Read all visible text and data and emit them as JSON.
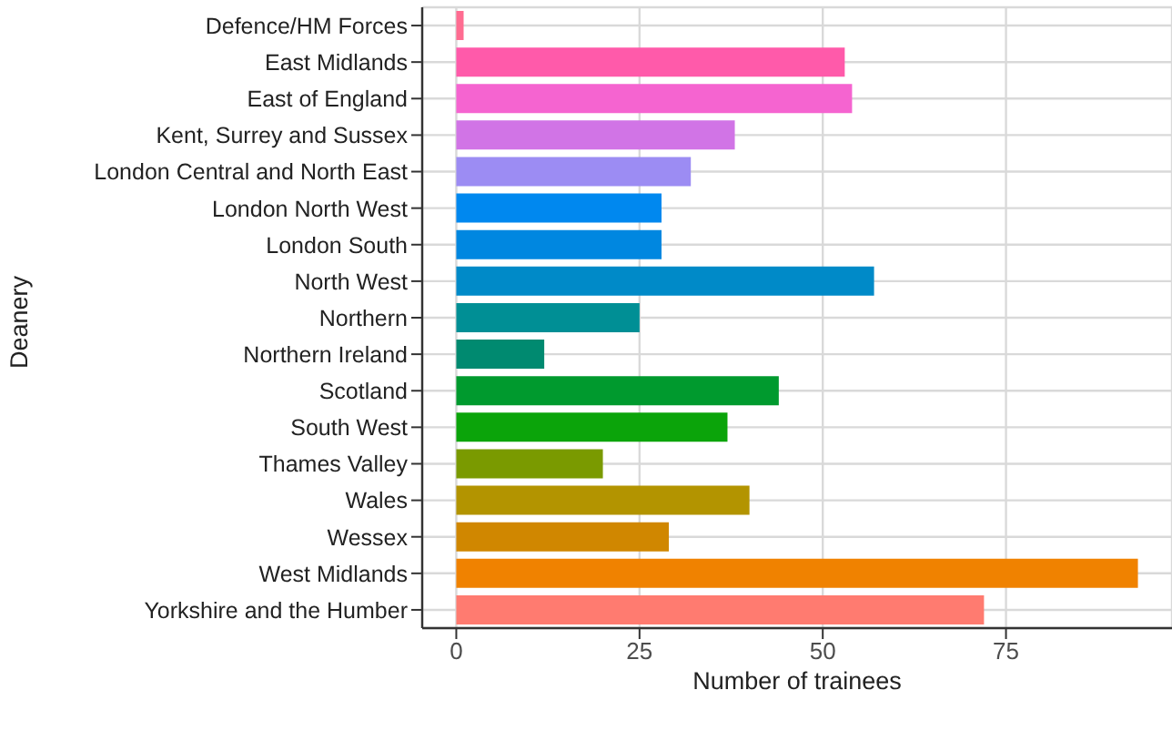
{
  "chart_data": {
    "type": "bar",
    "orientation": "horizontal",
    "xlabel": "Number of trainees",
    "ylabel": "Deanery",
    "categories": [
      "Defence/HM Forces",
      "East Midlands",
      "East of England",
      "Kent, Surrey and Sussex",
      "London  Central and North East",
      "London  North West",
      "London  South",
      "North West",
      "Northern",
      "Northern Ireland",
      "Scotland",
      "South West",
      "Thames Valley",
      "Wales",
      "Wessex",
      "West Midlands",
      "Yorkshire and the Humber"
    ],
    "values": [
      1,
      53,
      54,
      38,
      32,
      28,
      28,
      57,
      25,
      12,
      44,
      37,
      20,
      40,
      29,
      93,
      72
    ],
    "colors": [
      "#ff6c91",
      "#ff5aaa",
      "#f564d0",
      "#d174e6",
      "#9c8cf3",
      "#0088ef",
      "#0087e0",
      "#008ac8",
      "#008f95",
      "#008a70",
      "#009a2e",
      "#0ba40a",
      "#7a9a00",
      "#b39400",
      "#d08700",
      "#f08200",
      "#ff7b70"
    ],
    "xlim": [
      -4.65,
      97.65
    ],
    "xticks": [
      0,
      25,
      50,
      75
    ],
    "grid": true
  }
}
